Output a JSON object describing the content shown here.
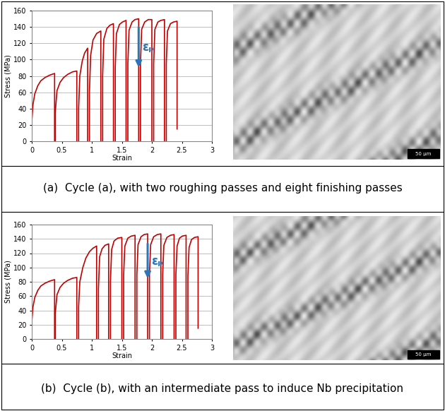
{
  "chart_data": [
    {
      "type": "line",
      "x_label": "Strain",
      "y_label": "Stress (MPa)",
      "caption": "(a)  Cycle (a), with two roughing passes and eight finishing passes",
      "scale_bar": "50 µm",
      "color": "#c00000",
      "grid": "y",
      "xlim": [
        0,
        3
      ],
      "xticks": [
        0,
        0.5,
        1,
        1.5,
        2,
        2.5,
        3
      ],
      "ylim": [
        0,
        160
      ],
      "yticks": [
        0,
        20,
        40,
        60,
        80,
        100,
        120,
        140,
        160
      ],
      "annotations": [
        {
          "text": "εₚ",
          "x": 1.78,
          "y_from": 142,
          "y_to": 88,
          "color": "#2e75b6"
        }
      ],
      "series": [
        {
          "x": [
            0,
            0,
            0.02,
            0.05,
            0.1,
            0.15,
            0.22,
            0.3,
            0.38,
            0.38
          ],
          "values": [
            0,
            25,
            45,
            58,
            68,
            74,
            78,
            81,
            83,
            0
          ]
        },
        {
          "x": [
            0.39,
            0.39,
            0.42,
            0.47,
            0.53,
            0.6,
            0.68,
            0.75,
            0.75
          ],
          "values": [
            0,
            35,
            62,
            72,
            78,
            82,
            85,
            86,
            0
          ]
        },
        {
          "x": [
            0.78,
            0.78,
            0.8,
            0.84,
            0.88,
            0.93,
            0.93
          ],
          "values": [
            0,
            40,
            80,
            98,
            108,
            114,
            0
          ]
        },
        {
          "x": [
            0.96,
            0.96,
            0.98,
            1.02,
            1.08,
            1.15,
            1.15
          ],
          "values": [
            0,
            60,
            105,
            124,
            132,
            135,
            0
          ]
        },
        {
          "x": [
            1.18,
            1.18,
            1.2,
            1.25,
            1.3,
            1.36,
            1.36
          ],
          "values": [
            0,
            80,
            125,
            138,
            142,
            144,
            0
          ]
        },
        {
          "x": [
            1.39,
            1.39,
            1.41,
            1.46,
            1.51,
            1.57,
            1.57
          ],
          "values": [
            0,
            90,
            132,
            143,
            146,
            148,
            0
          ]
        },
        {
          "x": [
            1.6,
            1.6,
            1.62,
            1.67,
            1.72,
            1.78,
            1.78
          ],
          "values": [
            0,
            95,
            136,
            146,
            149,
            150,
            0
          ]
        },
        {
          "x": [
            1.81,
            1.81,
            1.83,
            1.88,
            1.94,
            2.0,
            2.0
          ],
          "values": [
            0,
            95,
            137,
            146,
            149,
            149,
            0
          ]
        },
        {
          "x": [
            2.03,
            2.03,
            2.05,
            2.1,
            2.15,
            2.21,
            2.21
          ],
          "values": [
            0,
            95,
            137,
            146,
            148,
            149,
            0
          ]
        },
        {
          "x": [
            2.24,
            2.24,
            2.26,
            2.31,
            2.36,
            2.42,
            2.42
          ],
          "values": [
            0,
            95,
            135,
            144,
            146,
            147,
            15
          ]
        }
      ]
    },
    {
      "type": "line",
      "x_label": "Strain",
      "y_label": "Stress (MPa)",
      "caption": "(b)  Cycle (b), with an intermediate pass to induce Nb precipitation",
      "scale_bar": "50 µm",
      "color": "#c00000",
      "grid": "y",
      "xlim": [
        0,
        3
      ],
      "xticks": [
        0,
        0.5,
        1,
        1.5,
        2,
        2.5,
        3
      ],
      "ylim": [
        0,
        160
      ],
      "yticks": [
        0,
        20,
        40,
        60,
        80,
        100,
        120,
        140,
        160
      ],
      "annotations": [
        {
          "text": "εₚ",
          "x": 1.93,
          "y_from": 136,
          "y_to": 82,
          "color": "#2e75b6"
        }
      ],
      "series": [
        {
          "x": [
            0,
            0,
            0.02,
            0.05,
            0.1,
            0.15,
            0.22,
            0.3,
            0.38,
            0.38
          ],
          "values": [
            0,
            25,
            45,
            58,
            68,
            74,
            78,
            81,
            83,
            0
          ]
        },
        {
          "x": [
            0.39,
            0.39,
            0.42,
            0.47,
            0.53,
            0.6,
            0.68,
            0.75,
            0.75
          ],
          "values": [
            0,
            35,
            62,
            72,
            78,
            82,
            85,
            86,
            0
          ]
        },
        {
          "x": [
            0.78,
            0.78,
            0.8,
            0.85,
            0.9,
            0.96,
            1.02,
            1.08,
            1.08
          ],
          "values": [
            0,
            45,
            80,
            100,
            113,
            122,
            127,
            130,
            0
          ]
        },
        {
          "x": [
            1.11,
            1.11,
            1.13,
            1.17,
            1.22,
            1.28,
            1.28
          ],
          "values": [
            0,
            70,
            115,
            126,
            131,
            133,
            0
          ]
        },
        {
          "x": [
            1.31,
            1.31,
            1.33,
            1.37,
            1.43,
            1.5,
            1.5
          ],
          "values": [
            0,
            80,
            125,
            137,
            141,
            142,
            0
          ]
        },
        {
          "x": [
            1.53,
            1.53,
            1.55,
            1.6,
            1.66,
            1.72,
            1.72
          ],
          "values": [
            0,
            90,
            130,
            141,
            144,
            145,
            0
          ]
        },
        {
          "x": [
            1.75,
            1.75,
            1.77,
            1.82,
            1.87,
            1.93,
            1.93
          ],
          "values": [
            0,
            90,
            132,
            143,
            146,
            147,
            0
          ]
        },
        {
          "x": [
            1.96,
            1.96,
            1.98,
            2.03,
            2.09,
            2.15,
            2.15
          ],
          "values": [
            0,
            90,
            132,
            143,
            146,
            147,
            0
          ]
        },
        {
          "x": [
            2.18,
            2.18,
            2.2,
            2.25,
            2.31,
            2.37,
            2.37
          ],
          "values": [
            0,
            90,
            131,
            142,
            145,
            146,
            0
          ]
        },
        {
          "x": [
            2.4,
            2.4,
            2.42,
            2.46,
            2.51,
            2.57,
            2.57
          ],
          "values": [
            0,
            90,
            130,
            141,
            144,
            145,
            0
          ]
        },
        {
          "x": [
            2.6,
            2.6,
            2.62,
            2.66,
            2.71,
            2.77,
            2.77
          ],
          "values": [
            0,
            88,
            128,
            139,
            142,
            143,
            15
          ]
        }
      ]
    }
  ]
}
